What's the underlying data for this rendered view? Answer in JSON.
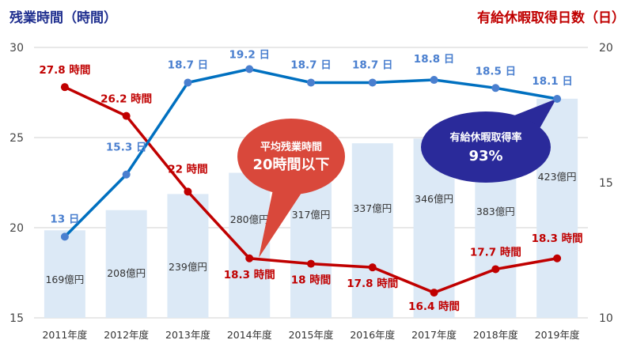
{
  "chart_data": {
    "type": "bar+line",
    "left_axis_title": "残業時間（時間）",
    "right_axis_title": "有給休暇取得日数（日）",
    "categories": [
      "2011年度",
      "2012年度",
      "2013年度",
      "2014年度",
      "2015年度",
      "2016年度",
      "2017年度",
      "2018年度",
      "2019年度"
    ],
    "left_ylim": [
      15,
      30
    ],
    "left_ticks": [
      "15",
      "20",
      "25",
      "30"
    ],
    "right_ylim": [
      10,
      20
    ],
    "right_ticks": [
      "10",
      "15",
      "20"
    ],
    "grid": true,
    "bars": {
      "values": [
        169,
        208,
        239,
        280,
        317,
        337,
        346,
        383,
        423
      ],
      "labels": [
        "169億円",
        "208億円",
        "239億円",
        "280億円",
        "317億円",
        "337億円",
        "346億円",
        "383億円",
        "423億円"
      ],
      "color": "#dce9f6"
    },
    "overtime": {
      "axis": "left",
      "values": [
        27.8,
        26.2,
        22,
        18.3,
        18,
        17.8,
        16.4,
        17.7,
        18.3
      ],
      "labels": [
        "27.8 時間",
        "26.2 時間",
        "22 時間",
        "18.3 時間",
        "18 時間",
        "17.8 時間",
        "16.4 時間",
        "17.7 時間",
        "18.3 時間"
      ],
      "color": "#c00000"
    },
    "leave_days": {
      "axis": "right",
      "values": [
        13,
        15.3,
        18.7,
        19.2,
        18.7,
        18.7,
        18.8,
        18.5,
        18.1
      ],
      "labels": [
        "13 日",
        "15.3 日",
        "18.7 日",
        "19.2 日",
        "18.7 日",
        "18.7 日",
        "18.8 日",
        "18.5 日",
        "18.1 日"
      ],
      "color": "#0070c0",
      "label_color": "#4a7fcf"
    },
    "annotations": [
      {
        "line1": "平均残業時間",
        "line2": "20時間以下",
        "color": "#d9483b"
      },
      {
        "line1": "有給休暇取得率",
        "line2": "93%",
        "color": "#2a2a9a"
      }
    ],
    "title_colors": {
      "left": "#1f2f8f",
      "right": "#c00000"
    }
  }
}
